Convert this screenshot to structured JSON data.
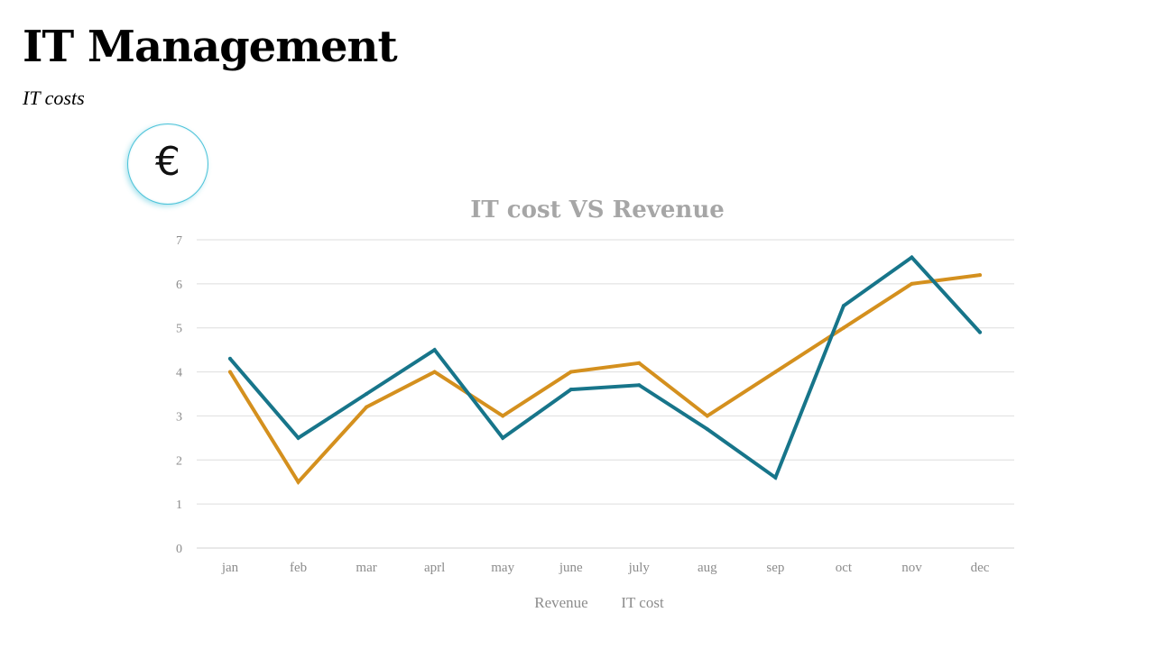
{
  "header": {
    "title": "IT Management",
    "subtitle": "IT costs"
  },
  "badge": {
    "icon": "euro-icon",
    "symbol": "€",
    "color": "#4cc3d9"
  },
  "chart_data": {
    "type": "line",
    "title": "IT cost VS Revenue",
    "xlabel": "",
    "ylabel": "",
    "categories": [
      "jan",
      "feb",
      "mar",
      "aprl",
      "may",
      "june",
      "july",
      "aug",
      "sep",
      "oct",
      "nov",
      "dec"
    ],
    "ylim": [
      0,
      7
    ],
    "yticks": [
      0,
      1,
      2,
      3,
      4,
      5,
      6,
      7
    ],
    "grid": true,
    "legend_position": "bottom",
    "series": [
      {
        "name": "Revenue",
        "color": "#d4901e",
        "values": [
          4.0,
          1.5,
          3.2,
          4.0,
          3.0,
          4.0,
          4.2,
          3.0,
          4.0,
          5.0,
          6.0,
          6.2
        ]
      },
      {
        "name": "IT  cost",
        "color": "#17758a",
        "values": [
          4.3,
          2.5,
          3.5,
          4.5,
          2.5,
          3.6,
          3.7,
          2.7,
          1.6,
          5.5,
          6.6,
          4.9
        ]
      }
    ]
  }
}
